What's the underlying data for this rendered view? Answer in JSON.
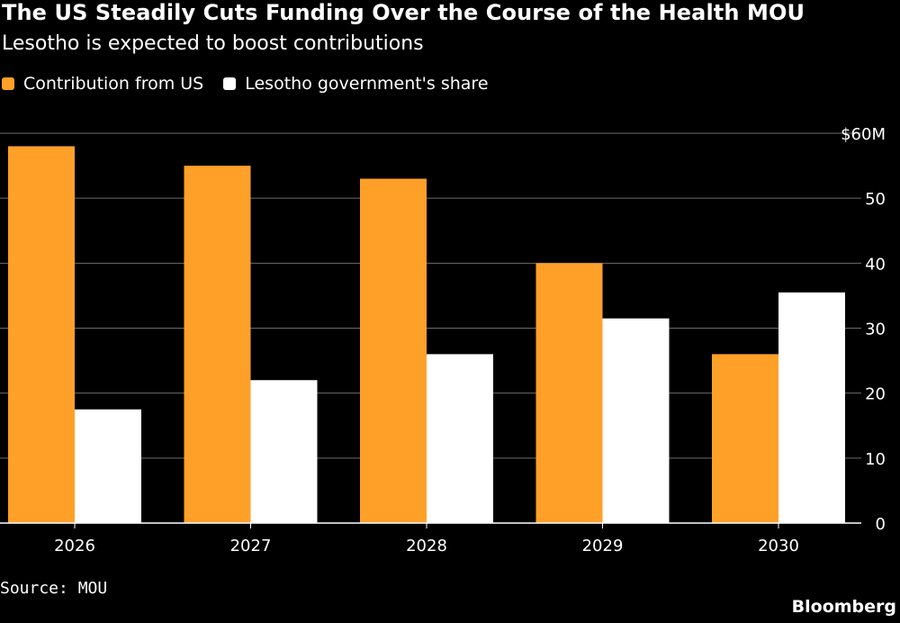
{
  "chart_data": {
    "type": "bar",
    "title": "The US Steadily Cuts Funding Over the Course of the Health MOU",
    "subtitle": "Lesotho is expected to boost contributions",
    "categories": [
      "2026",
      "2027",
      "2028",
      "2029",
      "2030"
    ],
    "series": [
      {
        "name": "Contribution from US",
        "color": "#FFA028",
        "values": [
          58,
          55,
          53,
          40,
          26
        ]
      },
      {
        "name": "Lesotho government's share",
        "color": "#FFFFFF",
        "values": [
          17.5,
          22,
          26,
          31.5,
          35.5
        ]
      }
    ],
    "ylim": [
      0,
      60
    ],
    "yticks": [
      0,
      10,
      20,
      30,
      40,
      50,
      60
    ],
    "ytick_labels": [
      "0",
      "10",
      "20",
      "30",
      "40",
      "50",
      "$60M"
    ],
    "y_axis_position": "right",
    "grid": true,
    "legend_position": "top-left"
  },
  "footer": {
    "source": "Source: MOU",
    "brand": "Bloomberg"
  }
}
